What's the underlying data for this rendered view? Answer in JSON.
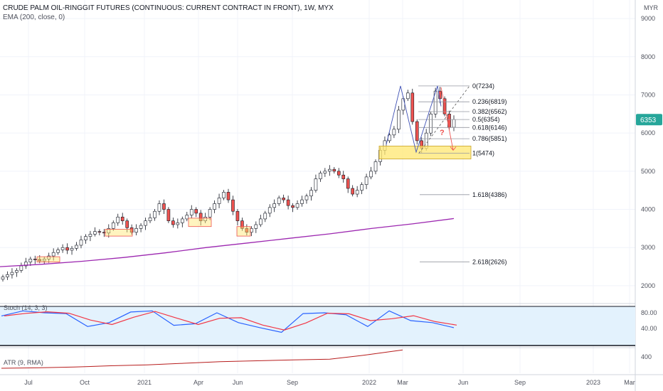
{
  "header": {
    "title": "CRUDE PALM OIL-RINGGIT FUTURES (CONTINUOUS: CURRENT CONTRACT IN FRONT), 1W, MYX",
    "ema_label": "EMA (200, close, 0)"
  },
  "axis": {
    "currency": "MYR",
    "price_ticks": [
      2000,
      3000,
      4000,
      5000,
      6000,
      7000,
      8000,
      9000
    ],
    "price_ylim": [
      1700,
      9300
    ],
    "current_price": "6353",
    "time_ticks": [
      "Jul",
      "Oct",
      "2021",
      "Apr",
      "Jun",
      "Sep",
      "2022",
      "Mar",
      "Jun",
      "Sep",
      "2023",
      "Mar"
    ],
    "stoch_ticks": [
      "80.00",
      "40.00"
    ],
    "atr_ticks": [
      "400"
    ]
  },
  "indicators": {
    "stoch_label": "Stoch (14, 3, 3)",
    "atr_label": "ATR (9, RMA)"
  },
  "fib_levels": [
    {
      "label": "0(7234)",
      "price": 7234
    },
    {
      "label": "0.236(6819)",
      "price": 6819
    },
    {
      "label": "0.382(6562)",
      "price": 6562
    },
    {
      "label": "0.5(6354)",
      "price": 6354
    },
    {
      "label": "0.618(6146)",
      "price": 6146
    },
    {
      "label": "0.786(5851)",
      "price": 5851
    },
    {
      "label": "1(5474)",
      "price": 5474
    },
    {
      "label": "1.618(4386)",
      "price": 4386
    },
    {
      "label": "2.618(2626)",
      "price": 2626
    }
  ],
  "annotation": {
    "question_mark": "?"
  },
  "colors": {
    "up": "#26a69a",
    "down": "#ef5350",
    "ema": "#9c27b0",
    "stoch_k": "#2962ff",
    "stoch_d": "#f23645",
    "atr": "#b71c1c",
    "zone": "#ffe770",
    "stoch_bg": "#e3f2fd"
  },
  "chart_data": {
    "type": "candlestick",
    "timeframe": "1W",
    "series": [
      {
        "name": "price_weekly_close",
        "values": [
          2230,
          2290,
          2350,
          2400,
          2520,
          2620,
          2700,
          2690,
          2650,
          2700,
          2780,
          2870,
          2940,
          3000,
          2930,
          2980,
          3060,
          3200,
          3290,
          3350,
          3420,
          3400,
          3380,
          3500,
          3650,
          3800,
          3700,
          3520,
          3400,
          3500,
          3580,
          3700,
          3780,
          3950,
          4150,
          4000,
          3700,
          3600,
          3650,
          3750,
          3850,
          4000,
          3900,
          3700,
          3800,
          4000,
          4150,
          4300,
          4450,
          4250,
          3950,
          3700,
          3500,
          3400,
          3500,
          3600,
          3750,
          3900,
          4050,
          4150,
          4300,
          4250,
          4100,
          4050,
          4150,
          4250,
          4350,
          4500,
          4800,
          4950,
          5000,
          5050,
          5000,
          4900,
          4800,
          4550,
          4400,
          4500,
          4650,
          4850,
          5000,
          5250,
          5550,
          5800,
          5950,
          6100,
          6600,
          6900,
          7050,
          6300,
          5800,
          5600,
          6000,
          6500,
          7100,
          6900,
          6500,
          6150,
          6353
        ]
      },
      {
        "name": "EMA (200, close, 0)",
        "values": [
          2500,
          2560,
          2640,
          2740,
          2860,
          3000,
          3120,
          3240,
          3360,
          3500,
          3620,
          3760
        ]
      },
      {
        "name": "Stoch (14, 3, 3)",
        "values": [
          72,
          85,
          80,
          78,
          45,
          55,
          82,
          85,
          48,
          52,
          80,
          55,
          42,
          30,
          78,
          80,
          75,
          45,
          85,
          60,
          55,
          42
        ]
      },
      {
        "name": "ATR (9, RMA)",
        "values": [
          210,
          215,
          225,
          240,
          250,
          270,
          290,
          300,
          310,
          320,
          370,
          430
        ]
      }
    ]
  }
}
